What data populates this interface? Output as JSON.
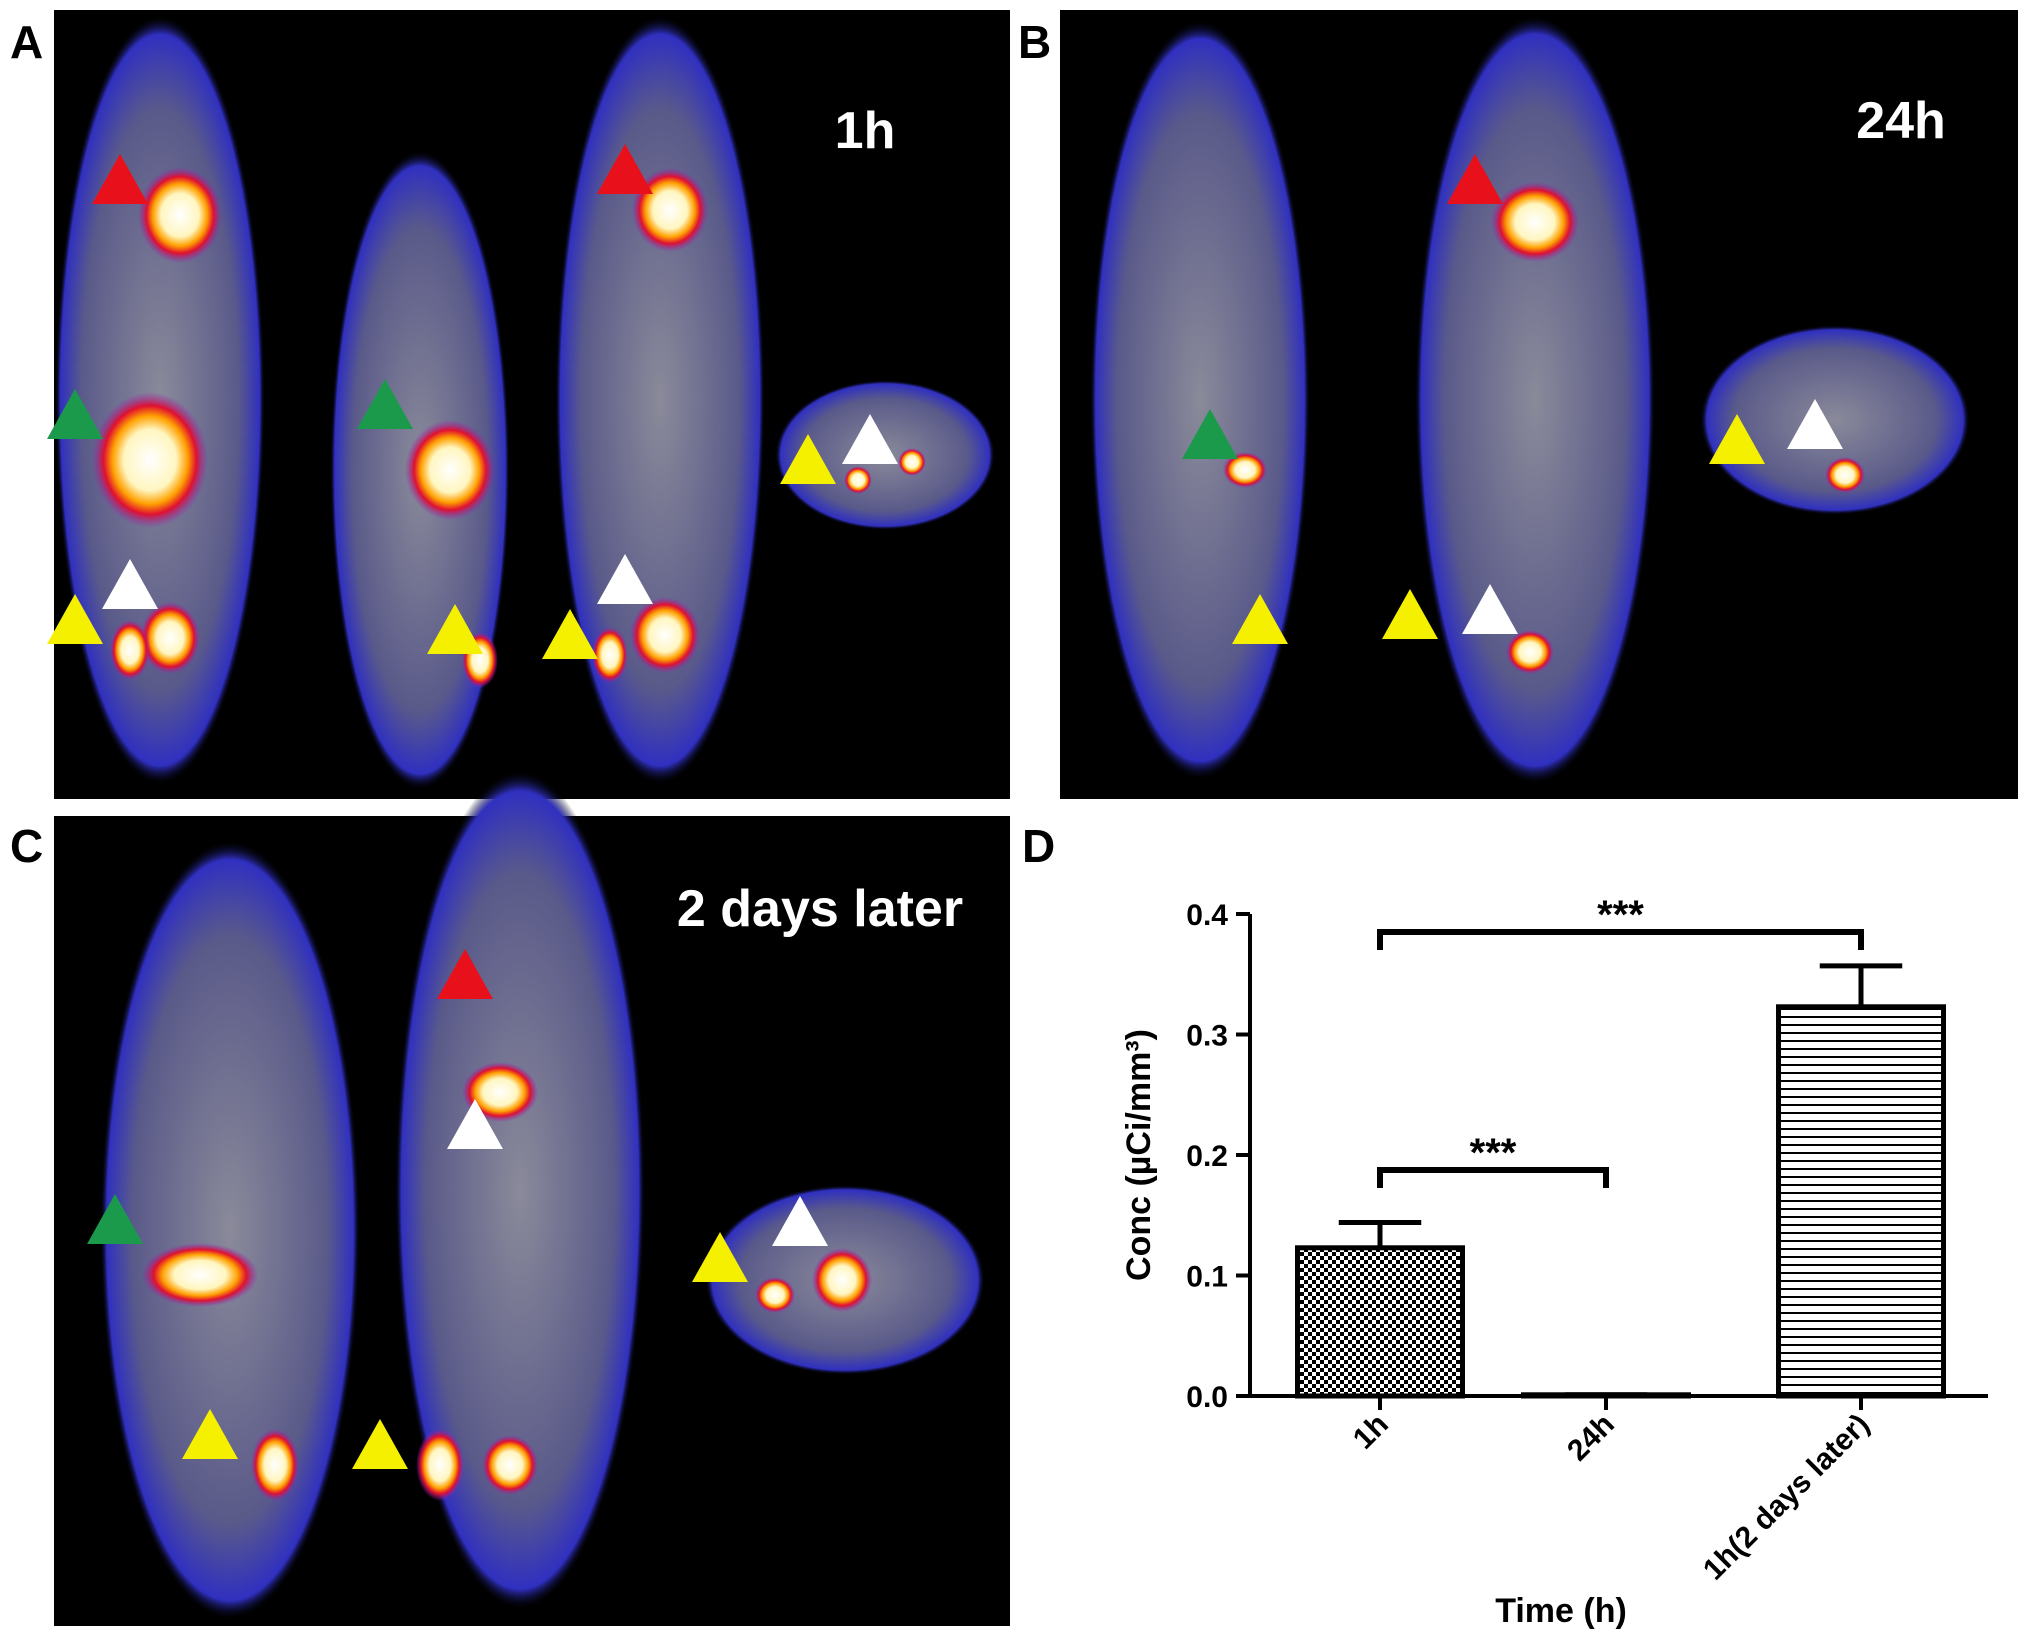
{
  "panels": [
    {
      "label": "A",
      "caption": "1h"
    },
    {
      "label": "B",
      "caption": "24h"
    },
    {
      "label": "C",
      "caption": "2 days later"
    },
    {
      "label": "D"
    }
  ],
  "chart_data": {
    "type": "bar",
    "categories": [
      "1h",
      "24h",
      "1h(2 days later)"
    ],
    "values": [
      0.123,
      0.001,
      0.323
    ],
    "errors": [
      0.021,
      0,
      0.034
    ],
    "patterns": [
      "checker",
      "none",
      "hlines"
    ],
    "color": "#000000",
    "xlabel": "Time (h)",
    "ylabel": "Conc (µCi/mm³)",
    "ylim": [
      0,
      0.4
    ],
    "yticks": [
      {
        "value": 0,
        "label": "0.0"
      },
      0.1,
      0.2,
      0.3,
      0.4
    ],
    "annotations": [
      "***",
      "***"
    ]
  }
}
